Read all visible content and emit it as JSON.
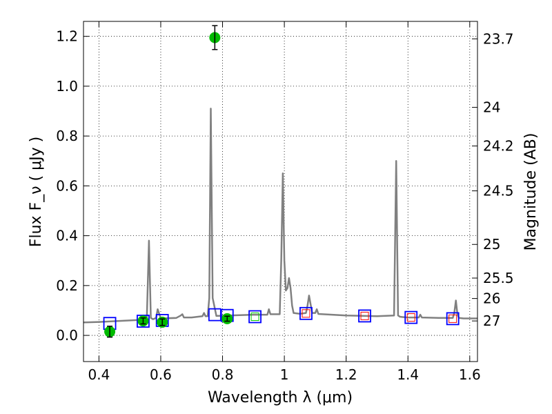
{
  "chart_data": {
    "type": "scatter",
    "xlabel": "Wavelength  λ (μm)",
    "ylabel": "Flux  F_ν  ( μJy )",
    "ylabel_right": "Magnitude (AB)",
    "xlim": [
      0.35,
      1.625
    ],
    "ylim": [
      -0.105,
      1.26
    ],
    "grid": true,
    "x_ticks": [
      0.4,
      0.6,
      0.8,
      1.0,
      1.2,
      1.4,
      1.6
    ],
    "x_tick_labels": [
      "0.4",
      "0.6",
      "0.8",
      "1",
      "1.2",
      "1.4",
      "1.6"
    ],
    "y_ticks": [
      0.0,
      0.2,
      0.4,
      0.6,
      0.8,
      1.0,
      1.2
    ],
    "y_tick_labels": [
      "0.0",
      "0.2",
      "0.4",
      "0.6",
      "0.8",
      "1.0",
      "1.2"
    ],
    "right_axis_ticks": [
      {
        "flux": 1.19,
        "label": "23.7"
      },
      {
        "flux": 0.915,
        "label": "24"
      },
      {
        "flux": 0.76,
        "label": "24.2"
      },
      {
        "flux": 0.58,
        "label": "24.5"
      },
      {
        "flux": 0.365,
        "label": "25"
      },
      {
        "flux": 0.23,
        "label": "25.5"
      },
      {
        "flux": 0.148,
        "label": "26"
      },
      {
        "flux": 0.058,
        "label": "27"
      }
    ],
    "model_spectrum": {
      "color": "#808080",
      "x": [
        0.35,
        0.4,
        0.45,
        0.5,
        0.55,
        0.555,
        0.562,
        0.568,
        0.575,
        0.585,
        0.59,
        0.6,
        0.65,
        0.665,
        0.67,
        0.675,
        0.7,
        0.735,
        0.74,
        0.745,
        0.752,
        0.757,
        0.762,
        0.768,
        0.78,
        0.82,
        0.9,
        0.945,
        0.95,
        0.955,
        0.985,
        0.99,
        0.995,
        1.0,
        1.005,
        1.01,
        1.015,
        1.02,
        1.025,
        1.03,
        1.05,
        1.07,
        1.075,
        1.08,
        1.09,
        1.1,
        1.105,
        1.11,
        1.2,
        1.3,
        1.355,
        1.362,
        1.368,
        1.374,
        1.38,
        1.4,
        1.435,
        1.44,
        1.445,
        1.5,
        1.545,
        1.55,
        1.555,
        1.56,
        1.565,
        1.58,
        1.625
      ],
      "y": [
        0.052,
        0.054,
        0.057,
        0.06,
        0.063,
        0.07,
        0.38,
        0.07,
        0.065,
        0.07,
        0.105,
        0.068,
        0.07,
        0.08,
        0.085,
        0.072,
        0.072,
        0.077,
        0.09,
        0.077,
        0.077,
        0.15,
        0.91,
        0.15,
        0.078,
        0.08,
        0.083,
        0.083,
        0.105,
        0.085,
        0.085,
        0.3,
        0.65,
        0.3,
        0.18,
        0.19,
        0.23,
        0.19,
        0.12,
        0.09,
        0.087,
        0.09,
        0.12,
        0.16,
        0.09,
        0.09,
        0.105,
        0.086,
        0.08,
        0.077,
        0.08,
        0.7,
        0.08,
        0.075,
        0.074,
        0.072,
        0.072,
        0.083,
        0.072,
        0.07,
        0.07,
        0.09,
        0.14,
        0.085,
        0.07,
        0.068,
        0.068
      ]
    },
    "synthetic_flux_boxes": [
      {
        "x": 0.435,
        "y": 0.048,
        "edge": "#0000ff",
        "inner": ""
      },
      {
        "x": 0.543,
        "y": 0.057,
        "edge": "#0000ff",
        "inner": ""
      },
      {
        "x": 0.605,
        "y": 0.06,
        "edge": "#0000ff",
        "inner": ""
      },
      {
        "x": 0.775,
        "y": 0.083,
        "edge": "#0000ff",
        "inner": ""
      },
      {
        "x": 0.815,
        "y": 0.08,
        "edge": "#0000ff",
        "inner": ""
      },
      {
        "x": 0.905,
        "y": 0.075,
        "edge": "#0000ff",
        "inner": "#00cc00"
      },
      {
        "x": 1.07,
        "y": 0.088,
        "edge": "#0000ff",
        "inner": "#ff0000"
      },
      {
        "x": 1.26,
        "y": 0.078,
        "edge": "#0000ff",
        "inner": "#ff0000"
      },
      {
        "x": 1.41,
        "y": 0.072,
        "edge": "#0000ff",
        "inner": "#ff0000"
      },
      {
        "x": 1.545,
        "y": 0.067,
        "edge": "#0000ff",
        "inner": "#ff0000"
      }
    ],
    "observed_photometry": [
      {
        "x": 0.435,
        "y": 0.015,
        "err": 0.022
      },
      {
        "x": 0.543,
        "y": 0.058,
        "err": 0.012
      },
      {
        "x": 0.605,
        "y": 0.053,
        "err": 0.013
      },
      {
        "x": 0.775,
        "y": 1.195,
        "err": 0.048
      },
      {
        "x": 0.815,
        "y": 0.067,
        "err": 0.01
      }
    ],
    "observed_color": "#00bb00"
  }
}
